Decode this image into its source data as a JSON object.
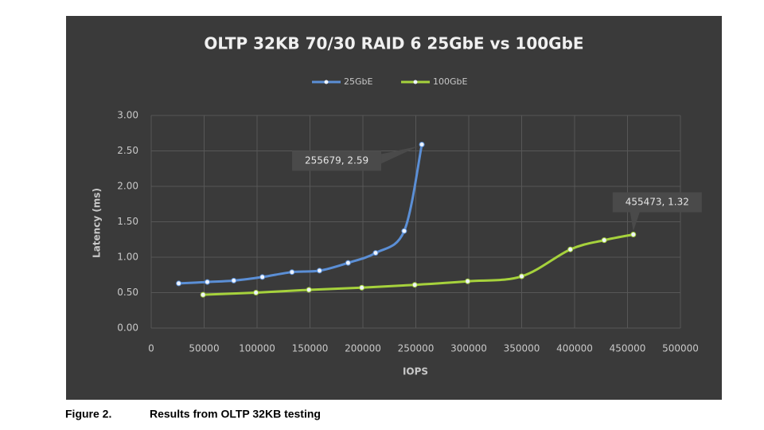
{
  "chart_data": {
    "type": "line",
    "title": "OLTP 32KB  70/30 RAID 6 25GbE vs 100GbE",
    "x_label": "IOPS",
    "y_label": "Latency (ms)",
    "series": [
      {
        "name": "25GbE",
        "color": "#5b8fd6",
        "x": [
          26000,
          53000,
          78000,
          105000,
          133000,
          159000,
          186000,
          212000,
          239000,
          255679
        ],
        "values": [
          0.63,
          0.65,
          0.67,
          0.72,
          0.79,
          0.81,
          0.92,
          1.06,
          1.37,
          2.59
        ]
      },
      {
        "name": "100GbE",
        "color": "#a6d23c",
        "x": [
          49000,
          99000,
          149000,
          199000,
          249000,
          299000,
          350000,
          396000,
          428000,
          455473
        ],
        "values": [
          0.47,
          0.5,
          0.54,
          0.57,
          0.61,
          0.66,
          0.73,
          1.11,
          1.24,
          1.32
        ]
      }
    ],
    "annotations": [
      {
        "text": "255679, 2.59"
      },
      {
        "text": "455473, 1.32"
      }
    ],
    "xlim": [
      0,
      500000
    ],
    "xticks": [
      0,
      50000,
      100000,
      150000,
      200000,
      250000,
      300000,
      350000,
      400000,
      450000,
      500000
    ],
    "ylim": [
      0,
      3
    ],
    "yticks": [
      {
        "value": 0,
        "label": "0.00"
      },
      {
        "value": 0.5,
        "label": "0.50"
      },
      {
        "value": 1,
        "label": "1.00"
      },
      {
        "value": 1.5,
        "label": "1.50"
      },
      {
        "value": 2,
        "label": "2.00"
      },
      {
        "value": 2.5,
        "label": "2.50"
      },
      {
        "value": 3,
        "label": "3.00"
      }
    ],
    "grid": true,
    "legend": "top",
    "smooth": true
  },
  "caption": {
    "label": "Figure 2.",
    "text": "Results from OLTP 32KB testing"
  }
}
